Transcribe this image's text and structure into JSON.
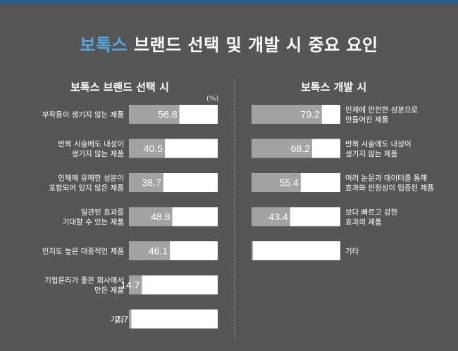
{
  "title_highlight": "보톡스",
  "title_rest": " 브랜드 선택 및 개발 시 중요 요인",
  "left_title": "보톡스 브랜드 선택 시",
  "right_title": "보톡스 개발 시",
  "unit": "(%)",
  "colors": {
    "bar_fill": "#a3a3a3",
    "bar_track": "#ffffff",
    "background": "#565656",
    "accent": "#4fa8e4"
  },
  "chart_data": [
    {
      "type": "bar",
      "orientation": "horizontal",
      "title": "보톡스 브랜드 선택 시",
      "unit": "(%)",
      "xlim": [
        0,
        100
      ],
      "categories": [
        [
          "부작용이 생기지 않는 제품"
        ],
        [
          "반복 시술에도 내성이",
          "생기지 않는 제품"
        ],
        [
          "인체에 유해한 성분이",
          "포함되어 있지 않은 제품"
        ],
        [
          "일관된 효과를",
          "기대할 수 있는 제품"
        ],
        [
          "인지도 높은 대중적인 제품"
        ],
        [
          "기업윤리가 좋은 회사에서",
          "만든 제품"
        ],
        [
          "기타"
        ]
      ],
      "values": [
        56.8,
        40.5,
        38.7,
        48.8,
        46.1,
        14.7,
        2.7
      ]
    },
    {
      "type": "bar",
      "orientation": "horizontal",
      "title": "보톡스 개발 시",
      "xlim": [
        0,
        100
      ],
      "categories": [
        [
          "인체에 안전한 성분으로",
          "만들어진 제품"
        ],
        [
          "반복 시술에도 내성이",
          "생기지 않는 제품"
        ],
        [
          "여러 논문과 데이터를 통해",
          "효과와 안정성이 입증된 제품"
        ],
        [
          "보다 빠르고 강한",
          "효과의 제품"
        ],
        [
          "기타"
        ]
      ],
      "values": [
        79.2,
        68.2,
        55.4,
        43.4,
        0.2
      ]
    }
  ]
}
